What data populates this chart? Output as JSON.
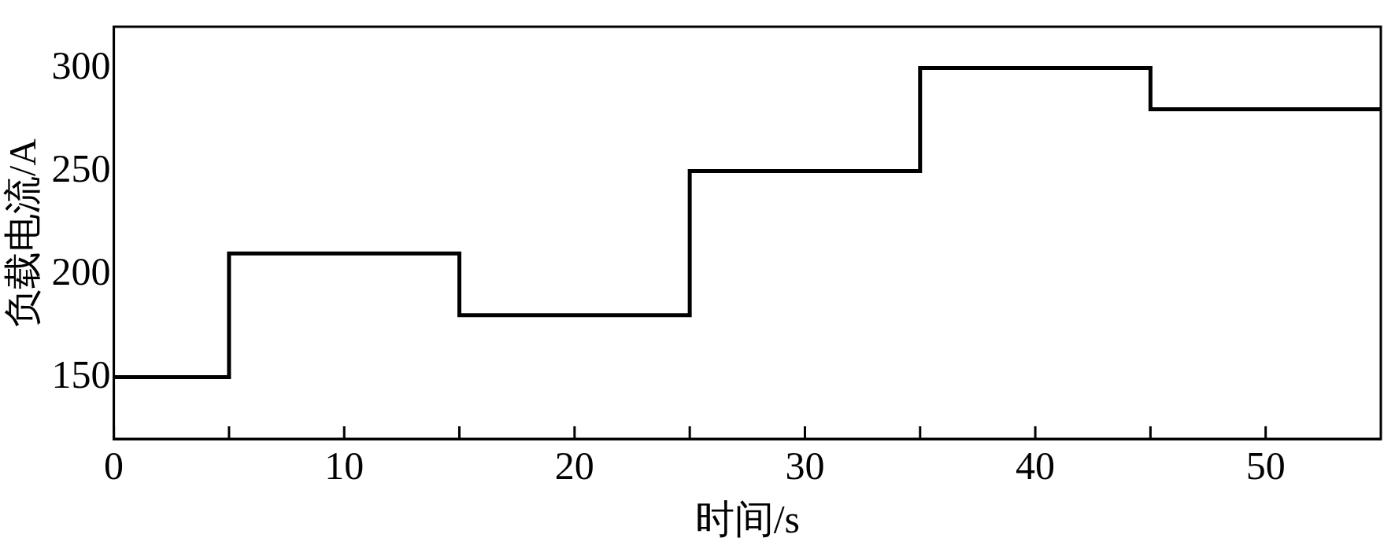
{
  "chart_data": {
    "type": "step",
    "xlabel": "时间/s",
    "ylabel": "负载电流/A",
    "x": [
      0,
      5,
      15,
      25,
      35,
      45,
      55
    ],
    "series": [
      {
        "color": "#000000",
        "values": [
          150,
          210,
          180,
          250,
          300,
          280,
          280
        ]
      }
    ],
    "xlim": [
      0,
      55
    ],
    "ylim": [
      120,
      320
    ],
    "xticks": [
      0,
      {
        "value": 5,
        "label": null
      },
      10,
      {
        "value": 15,
        "label": null
      },
      20,
      {
        "value": 25,
        "label": null
      },
      30,
      {
        "value": 35,
        "label": null
      },
      40,
      {
        "value": 45,
        "label": null
      },
      50
    ],
    "yticks": [
      150,
      200,
      250,
      300
    ],
    "grid": false,
    "legend": false,
    "marker": "none",
    "line_style": "solid"
  }
}
